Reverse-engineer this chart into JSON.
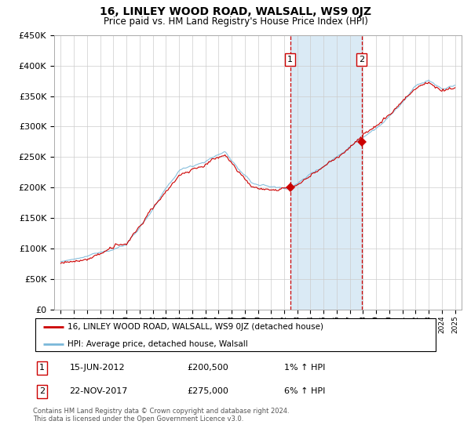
{
  "title": "16, LINLEY WOOD ROAD, WALSALL, WS9 0JZ",
  "subtitle": "Price paid vs. HM Land Registry's House Price Index (HPI)",
  "legend_line1": "16, LINLEY WOOD ROAD, WALSALL, WS9 0JZ (detached house)",
  "legend_line2": "HPI: Average price, detached house, Walsall",
  "transaction1_date": "15-JUN-2012",
  "transaction1_price": "£200,500",
  "transaction1_hpi": "1% ↑ HPI",
  "transaction2_date": "22-NOV-2017",
  "transaction2_price": "£275,000",
  "transaction2_hpi": "6% ↑ HPI",
  "footnote": "Contains HM Land Registry data © Crown copyright and database right 2024.\nThis data is licensed under the Open Government Licence v3.0.",
  "hpi_line_color": "#7ab8d9",
  "price_line_color": "#cc0000",
  "marker_color": "#cc0000",
  "vline_color": "#cc0000",
  "shade_color": "#daeaf5",
  "background_color": "#ffffff",
  "grid_color": "#cccccc",
  "ylim": [
    0,
    450000
  ],
  "yticks": [
    0,
    50000,
    100000,
    150000,
    200000,
    250000,
    300000,
    350000,
    400000,
    450000
  ],
  "year_start": 1995,
  "year_end": 2025,
  "transaction1_year": 2012.46,
  "transaction2_year": 2017.9,
  "transaction1_price_val": 200500,
  "transaction2_price_val": 275000
}
